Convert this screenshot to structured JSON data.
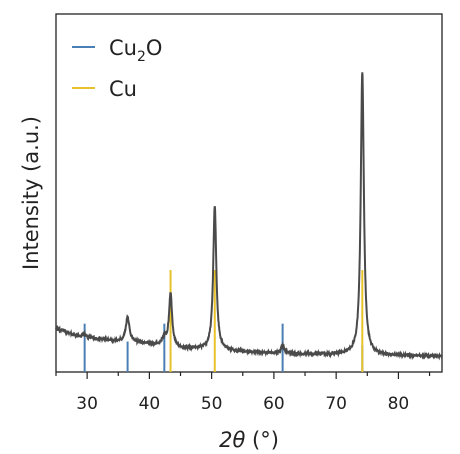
{
  "chart_data": {
    "type": "line",
    "xlabel": "2θ (°)",
    "ylabel": "Intensity (a.u.)",
    "xlim": [
      25,
      87
    ],
    "ylim": [
      0,
      100
    ],
    "x_ticks": [
      30,
      40,
      50,
      60,
      70,
      80
    ],
    "y_ticks_shown": false,
    "grid": false,
    "legend": {
      "placement": "top-left",
      "entries": [
        {
          "label": "Cu",
          "subscript": "2",
          "suffix": "O",
          "color": "#4a7fb5"
        },
        {
          "label": "Cu",
          "subscript": "",
          "suffix": "",
          "color": "#e8c22a"
        }
      ]
    },
    "pattern": {
      "color": "#4a4a4a",
      "baseline": [
        [
          25,
          12.2
        ],
        [
          28,
          10.3
        ],
        [
          30,
          9.6
        ],
        [
          35,
          8.6
        ],
        [
          40,
          7.9
        ],
        [
          45,
          6.5
        ],
        [
          50,
          6.3
        ],
        [
          55,
          5.6
        ],
        [
          60,
          5.3
        ],
        [
          65,
          5.0
        ],
        [
          70,
          4.9
        ],
        [
          75,
          4.8
        ],
        [
          80,
          4.6
        ],
        [
          87,
          4.4
        ]
      ],
      "peaks": [
        {
          "x": 29.6,
          "height": 0.8,
          "width": 0.35
        },
        {
          "x": 36.5,
          "height": 7.0,
          "width": 0.35
        },
        {
          "x": 42.4,
          "height": 2.2,
          "width": 0.35
        },
        {
          "x": 43.4,
          "height": 15.0,
          "width": 0.3
        },
        {
          "x": 50.5,
          "height": 40.0,
          "width": 0.3
        },
        {
          "x": 61.4,
          "height": 2.0,
          "width": 0.35
        },
        {
          "x": 74.2,
          "height": 79.0,
          "width": 0.3
        }
      ]
    },
    "reference_series": [
      {
        "name": "Cu2O",
        "color": "#4a7fb5",
        "x": [
          29.6,
          36.5,
          42.4,
          61.4,
          74.2
        ],
        "y": [
          13.5,
          8.5,
          13.5,
          13.5,
          7.5
        ]
      },
      {
        "name": "Cu",
        "color": "#e8c22a",
        "x": [
          43.4,
          50.5,
          74.2
        ],
        "y": [
          28.5,
          28.5,
          28.5
        ]
      }
    ]
  }
}
